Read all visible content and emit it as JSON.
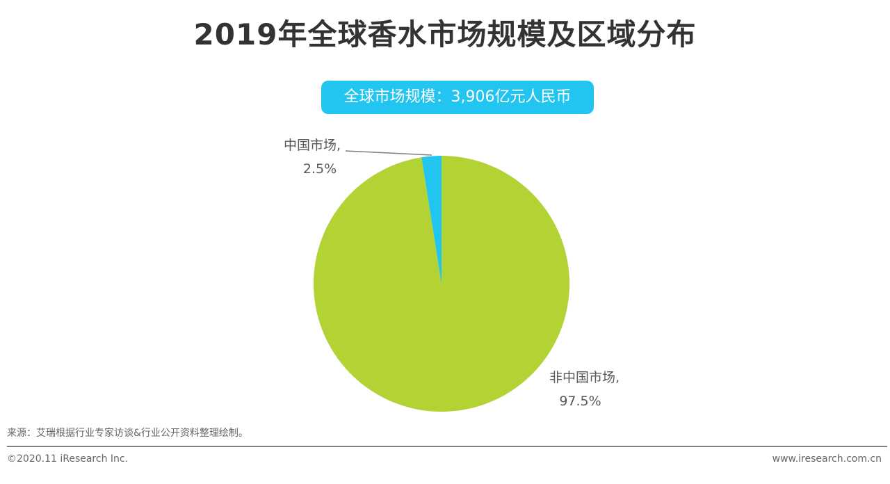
{
  "chart_data": {
    "type": "pie",
    "title": "2019年全球香水市场规模及区域分布",
    "subtitle": "全球市场规模：3,906亿元人民币",
    "slices": [
      {
        "label": "中国市场,",
        "value": 2.5,
        "value_label": "2.5%",
        "color": "#22c5f0"
      },
      {
        "label": "非中国市场,",
        "value": 97.5,
        "value_label": "97.5%",
        "color": "#b3d234"
      }
    ]
  },
  "footer": {
    "source": "来源：艾瑞根据行业专家访谈&行业公开资料整理绘制。",
    "copyright": "©2020.11 iResearch Inc.",
    "website": "www.iresearch.com.cn"
  }
}
